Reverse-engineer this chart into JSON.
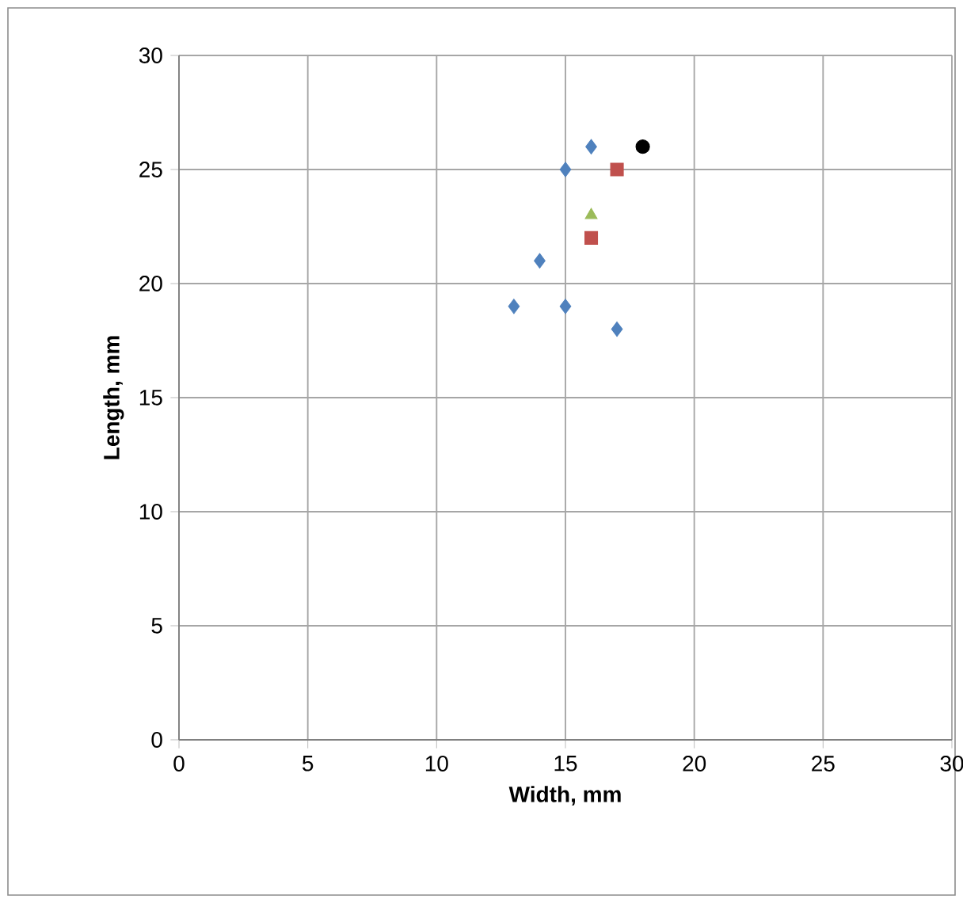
{
  "chart_data": {
    "type": "scatter",
    "xlabel": "Width, mm",
    "ylabel": "Length, mm",
    "xlim": [
      0,
      30
    ],
    "ylim": [
      0,
      30
    ],
    "xticks": [
      0,
      5,
      10,
      15,
      20,
      25,
      30
    ],
    "yticks": [
      0,
      5,
      10,
      15,
      20,
      25,
      30
    ],
    "grid": true,
    "series": [
      {
        "color": "#4f81bd",
        "marker": "diamond",
        "x": [
          16,
          15,
          14,
          13,
          15,
          17
        ],
        "values": [
          26,
          25,
          21,
          19,
          19,
          18
        ]
      },
      {
        "color": "#c0504d",
        "marker": "square",
        "x": [
          17,
          16
        ],
        "values": [
          25,
          22
        ]
      },
      {
        "color": "#9bbb59",
        "marker": "triangle",
        "x": [
          16
        ],
        "values": [
          23
        ]
      },
      {
        "color": "#000000",
        "marker": "circle",
        "x": [
          18
        ],
        "values": [
          26
        ]
      }
    ]
  }
}
